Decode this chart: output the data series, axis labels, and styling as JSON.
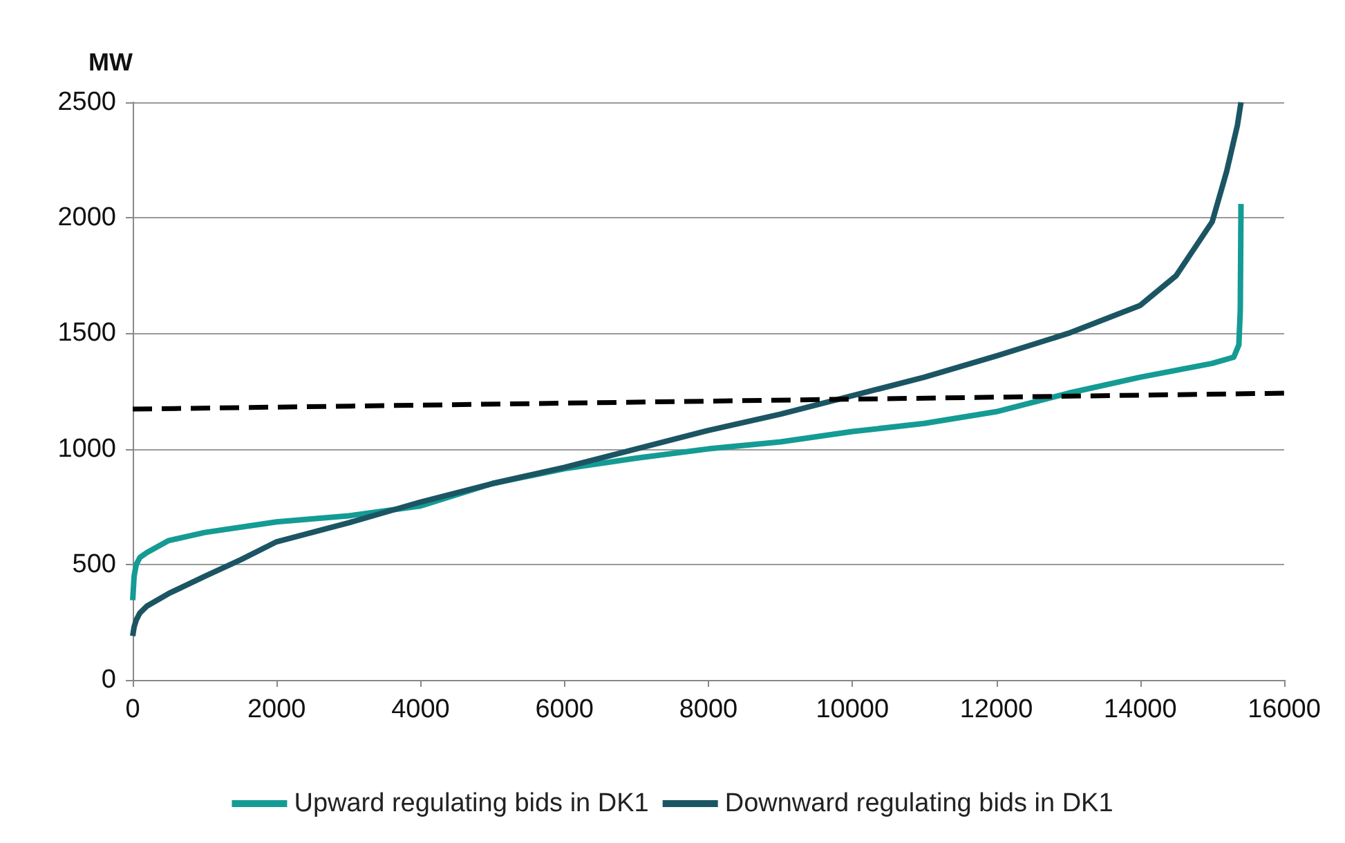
{
  "chart_data": {
    "type": "line",
    "ylabel": "MW",
    "xlim": [
      0,
      16000
    ],
    "xticks": [
      0,
      2000,
      4000,
      6000,
      8000,
      10000,
      12000,
      14000,
      16000
    ],
    "ylim": [
      0,
      2500
    ],
    "yticks": [
      0,
      500,
      1000,
      1500,
      2000,
      2500
    ],
    "grid": "y",
    "legend": "bottom",
    "marker": "none",
    "series": [
      {
        "name": "Upward regulating bids in DK1",
        "color": "#149b94",
        "x": [
          0,
          20,
          50,
          100,
          200,
          500,
          1000,
          2000,
          3000,
          4000,
          5000,
          6000,
          7000,
          8000,
          9000,
          10000,
          11000,
          12000,
          13000,
          14000,
          15000,
          15300,
          15370,
          15390,
          15400
        ],
        "values": [
          345,
          450,
          500,
          530,
          552,
          603,
          638,
          684,
          710,
          753,
          850,
          914,
          960,
          1000,
          1030,
          1075,
          1110,
          1161,
          1241,
          1310,
          1370,
          1397,
          1450,
          1600,
          2060
        ]
      },
      {
        "name": "Downward regulating bids in DK1",
        "color": "#1b5563",
        "x": [
          0,
          20,
          50,
          100,
          200,
          500,
          1000,
          1500,
          2000,
          3000,
          4000,
          5000,
          6000,
          7000,
          8000,
          9000,
          10000,
          11000,
          12000,
          13000,
          14000,
          14500,
          15000,
          15200,
          15350,
          15400
        ],
        "values": [
          190,
          230,
          260,
          290,
          320,
          374,
          448,
          520,
          598,
          680,
          770,
          850,
          920,
          1000,
          1080,
          1150,
          1230,
          1310,
          1402,
          1500,
          1621,
          1750,
          1983,
          2200,
          2400,
          2500
        ]
      },
      {
        "color": "#000000",
        "line_style": "dashed",
        "x": [
          0,
          16000
        ],
        "values": [
          1172,
          1241
        ]
      }
    ]
  }
}
